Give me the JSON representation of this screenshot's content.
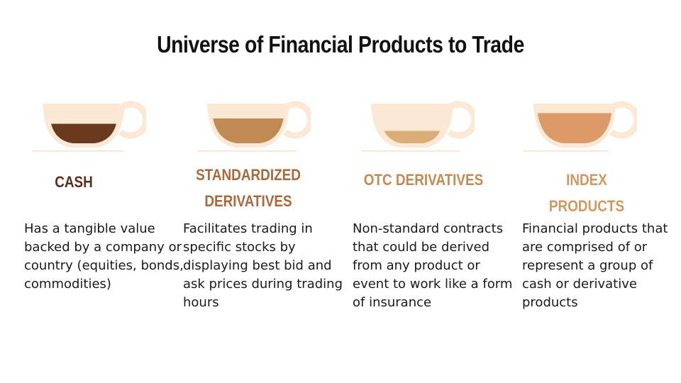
{
  "title": "Universe of Financial Products to Trade",
  "products": [
    {
      "heading_lines": [
        "CASH"
      ],
      "description": "Has a tangible value backed by a company or country (equities, bonds, commodities)",
      "liquid_color": "#6b3a1e",
      "fill_level": 0.55
    },
    {
      "heading_lines": [
        "STANDARDIZED",
        "DERIVATIVES"
      ],
      "description": "Facilitates trading in specific stocks by displaying best bid and ask prices during trading hours",
      "liquid_color": "#c08a55",
      "fill_level": 0.7
    },
    {
      "heading_lines": [
        "OTC DERIVATIVES"
      ],
      "description": "Non-standard contracts that could be derived from any product or event to work like a form of insurance",
      "liquid_color": "#d9ad75",
      "fill_level": 0.35
    },
    {
      "heading_lines": [
        "INDEX PRODUCTS"
      ],
      "description": "Financial products that are comprised of or represent a group of cash or derivative products",
      "liquid_color": "#db9a67",
      "fill_level": 0.85
    }
  ],
  "colors": {
    "cup": "#fbe9d6",
    "heading": [
      "#5a2f1b",
      "#a8693d",
      "#c58a52",
      "#cf9961"
    ]
  },
  "icons": [
    "coffee-cup-icon",
    "coffee-cup-icon",
    "coffee-cup-icon",
    "coffee-cup-icon"
  ]
}
